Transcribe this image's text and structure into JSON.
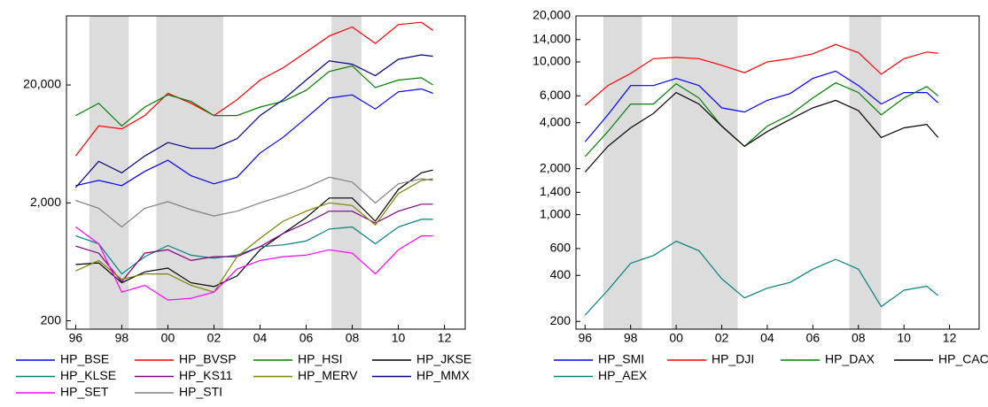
{
  "chart_data": [
    {
      "type": "line",
      "log_scale": true,
      "x": [
        1996,
        1997,
        1998,
        1999,
        2000,
        2001,
        2002,
        2003,
        2004,
        2005,
        2006,
        2007,
        2008,
        2009,
        2010,
        2011,
        2011.5
      ],
      "xlim": [
        1995.6,
        2012.9
      ],
      "xticks": [
        {
          "value": 1996,
          "label": "96"
        },
        {
          "value": 1998,
          "label": "98"
        },
        {
          "value": 2000,
          "label": "00"
        },
        {
          "value": 2002,
          "label": "02"
        },
        {
          "value": 2004,
          "label": "04"
        },
        {
          "value": 2006,
          "label": "06"
        },
        {
          "value": 2008,
          "label": "08"
        },
        {
          "value": 2010,
          "label": "10"
        },
        {
          "value": 2012,
          "label": "12"
        }
      ],
      "ylim": [
        170,
        77000
      ],
      "yticks": [
        200,
        {
          "value": 2000,
          "label": "2,000"
        },
        {
          "value": 20000,
          "label": "20,000"
        }
      ],
      "shaded": [
        [
          1996.6,
          1998.3
        ],
        [
          1999.5,
          2002.4
        ],
        [
          2007.1,
          2008.4
        ]
      ],
      "series": [
        {
          "name": "HP_BSE",
          "color": "#0000ff",
          "values": [
            2800,
            3100,
            2800,
            3700,
            4600,
            3400,
            2900,
            3300,
            5300,
            7200,
            10500,
            15500,
            16500,
            12500,
            17500,
            18500,
            17000
          ]
        },
        {
          "name": "HP_BVSP",
          "color": "#ff0000",
          "values": [
            5000,
            9000,
            8500,
            11000,
            17000,
            14000,
            11000,
            15000,
            22000,
            28000,
            38000,
            52000,
            62000,
            45000,
            65000,
            68000,
            58000
          ]
        },
        {
          "name": "HP_HSI",
          "color": "#008000",
          "values": [
            11000,
            14000,
            9000,
            13000,
            16500,
            14500,
            11000,
            11000,
            13000,
            14500,
            18000,
            26000,
            29000,
            19000,
            22000,
            23000,
            20000
          ]
        },
        {
          "name": "HP_JKSE",
          "color": "#000000",
          "values": [
            600,
            620,
            420,
            520,
            560,
            420,
            390,
            480,
            800,
            1100,
            1500,
            2200,
            2200,
            1400,
            2600,
            3600,
            3800
          ]
        },
        {
          "name": "HP_KLSE",
          "color": "#008080",
          "values": [
            1050,
            900,
            500,
            700,
            870,
            720,
            680,
            720,
            850,
            880,
            950,
            1200,
            1250,
            900,
            1250,
            1450,
            1450
          ]
        },
        {
          "name": "HP_KS11",
          "color": "#800080",
          "values": [
            860,
            750,
            430,
            750,
            800,
            650,
            700,
            700,
            850,
            1100,
            1350,
            1700,
            1700,
            1350,
            1700,
            1950,
            1950
          ]
        },
        {
          "name": "HP_MERV",
          "color": "#808000",
          "values": [
            530,
            650,
            450,
            500,
            500,
            400,
            350,
            700,
            1000,
            1400,
            1700,
            2000,
            1900,
            1300,
            2400,
            3100,
            3200
          ]
        },
        {
          "name": "HP_MMX",
          "color": "#000080",
          "values": [
            2700,
            4500,
            3600,
            5000,
            6500,
            5800,
            5800,
            7000,
            11000,
            15000,
            22000,
            32000,
            30000,
            24000,
            33000,
            36000,
            35000
          ]
        },
        {
          "name": "HP_SET",
          "color": "#ff00ff",
          "values": [
            1250,
            900,
            350,
            400,
            300,
            310,
            350,
            550,
            650,
            700,
            720,
            800,
            750,
            500,
            800,
            1050,
            1050
          ]
        },
        {
          "name": "HP_STI",
          "color": "#808080",
          "values": [
            2100,
            1800,
            1250,
            1800,
            2050,
            1750,
            1550,
            1700,
            2000,
            2300,
            2700,
            3300,
            3000,
            2000,
            2900,
            3200,
            3100
          ]
        }
      ]
    },
    {
      "type": "line",
      "log_scale": true,
      "x": [
        1996,
        1997,
        1998,
        1999,
        2000,
        2001,
        2002,
        2003,
        2004,
        2005,
        2006,
        2007,
        2008,
        2009,
        2010,
        2011,
        2011.5
      ],
      "xlim": [
        1995.6,
        2013.3
      ],
      "xticks": [
        {
          "value": 1996,
          "label": "96"
        },
        {
          "value": 1998,
          "label": "98"
        },
        {
          "value": 2000,
          "label": "00"
        },
        {
          "value": 2002,
          "label": "02"
        },
        {
          "value": 2004,
          "label": "04"
        },
        {
          "value": 2006,
          "label": "06"
        },
        {
          "value": 2008,
          "label": "08"
        },
        {
          "value": 2010,
          "label": "10"
        },
        {
          "value": 2012,
          "label": "12"
        }
      ],
      "ylim": [
        178,
        20000
      ],
      "yticks": [
        200,
        400,
        600,
        {
          "value": 1000,
          "label": "1,000"
        },
        {
          "value": 1400,
          "label": "1,400"
        },
        {
          "value": 2000,
          "label": "2,000"
        },
        {
          "value": 4000,
          "label": "4,000"
        },
        {
          "value": 6000,
          "label": "6,000"
        },
        {
          "value": 10000,
          "label": "10,000"
        },
        {
          "value": 14000,
          "label": "14,000"
        },
        {
          "value": 20000,
          "label": "20,000"
        }
      ],
      "shaded": [
        [
          1996.8,
          1998.5
        ],
        [
          1999.8,
          2002.7
        ],
        [
          2007.6,
          2009.0
        ]
      ],
      "series": [
        {
          "name": "HP_SMI",
          "color": "#0000ff",
          "values": [
            3000,
            4500,
            7000,
            7000,
            7800,
            7000,
            5000,
            4700,
            5600,
            6200,
            7800,
            8700,
            7000,
            5300,
            6300,
            6300,
            5400
          ]
        },
        {
          "name": "HP_DJI",
          "color": "#ff0000",
          "values": [
            5200,
            7000,
            8400,
            10500,
            10700,
            10500,
            9500,
            8500,
            10000,
            10500,
            11300,
            13000,
            11500,
            8300,
            10500,
            11600,
            11400
          ]
        },
        {
          "name": "HP_DAX",
          "color": "#008000",
          "values": [
            2400,
            3500,
            5300,
            5300,
            7200,
            5800,
            3800,
            2800,
            3800,
            4500,
            5800,
            7300,
            6300,
            4500,
            5800,
            6900,
            6000
          ]
        },
        {
          "name": "HP_CAC",
          "color": "#000000",
          "values": [
            1900,
            2800,
            3700,
            4600,
            6300,
            5300,
            3800,
            2800,
            3500,
            4200,
            5000,
            5600,
            4800,
            3200,
            3700,
            3900,
            3200
          ]
        },
        {
          "name": "HP_AEX",
          "color": "#008080",
          "values": [
            220,
            320,
            480,
            540,
            670,
            580,
            380,
            285,
            330,
            360,
            440,
            510,
            440,
            250,
            320,
            340,
            295
          ]
        }
      ]
    }
  ]
}
